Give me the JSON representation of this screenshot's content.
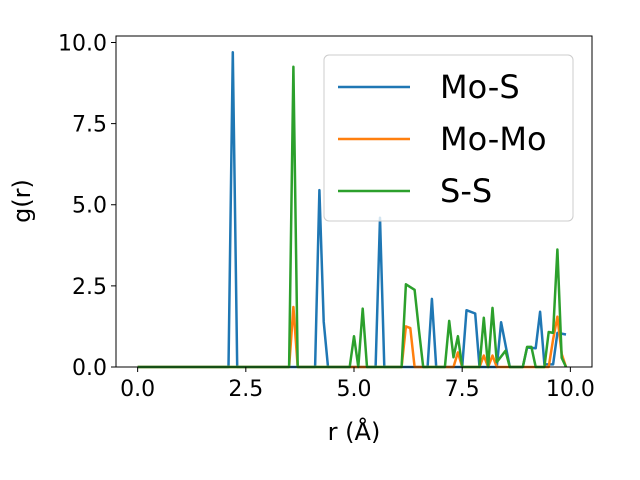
{
  "chart_data": {
    "type": "line",
    "xlabel": "r (Å)",
    "ylabel": "g(r)",
    "xlim": [
      -0.5,
      10.5
    ],
    "ylim": [
      0,
      10.2
    ],
    "xticks": [
      0.0,
      2.5,
      5.0,
      7.5,
      10.0
    ],
    "xtick_labels": [
      "0.0",
      "2.5",
      "5.0",
      "7.5",
      "10.0"
    ],
    "yticks": [
      0.0,
      2.5,
      5.0,
      7.5,
      10.0
    ],
    "ytick_labels": [
      "0.0",
      "2.5",
      "5.0",
      "7.5",
      "10.0"
    ],
    "grid": false,
    "legend_position": "top-right",
    "series": [
      {
        "name": "Mo-S",
        "color": "#1f77b4",
        "points": [
          [
            0.0,
            0
          ],
          [
            2.1,
            0
          ],
          [
            2.2,
            9.7
          ],
          [
            2.3,
            0
          ],
          [
            4.1,
            0
          ],
          [
            4.2,
            5.45
          ],
          [
            4.3,
            1.4
          ],
          [
            4.4,
            0
          ],
          [
            5.5,
            0
          ],
          [
            5.6,
            4.6
          ],
          [
            5.7,
            0
          ],
          [
            6.7,
            0
          ],
          [
            6.8,
            2.1
          ],
          [
            6.9,
            0
          ],
          [
            7.5,
            0
          ],
          [
            7.6,
            1.75
          ],
          [
            7.8,
            1.65
          ],
          [
            7.9,
            0
          ],
          [
            8.3,
            0
          ],
          [
            8.4,
            1.38
          ],
          [
            8.6,
            0
          ],
          [
            8.9,
            0
          ],
          [
            9.0,
            0.6
          ],
          [
            9.2,
            0.58
          ],
          [
            9.3,
            1.7
          ],
          [
            9.4,
            0.08
          ],
          [
            9.6,
            0.08
          ],
          [
            9.7,
            1.05
          ],
          [
            9.9,
            1.0
          ]
        ]
      },
      {
        "name": "Mo-Mo",
        "color": "#ff7f0e",
        "points": [
          [
            0.0,
            0
          ],
          [
            3.5,
            0
          ],
          [
            3.6,
            1.85
          ],
          [
            3.7,
            0
          ],
          [
            6.1,
            0
          ],
          [
            6.2,
            1.25
          ],
          [
            6.3,
            1.2
          ],
          [
            6.4,
            0
          ],
          [
            7.3,
            0
          ],
          [
            7.4,
            0.45
          ],
          [
            7.5,
            0
          ],
          [
            7.9,
            0
          ],
          [
            8.0,
            0.35
          ],
          [
            8.1,
            0
          ],
          [
            8.2,
            0.35
          ],
          [
            8.3,
            0
          ],
          [
            9.5,
            0
          ],
          [
            9.6,
            0.85
          ],
          [
            9.7,
            1.55
          ],
          [
            9.8,
            0.4
          ],
          [
            9.9,
            0
          ]
        ]
      },
      {
        "name": "S-S",
        "color": "#2ca02c",
        "points": [
          [
            0.0,
            0
          ],
          [
            3.5,
            0
          ],
          [
            3.6,
            9.25
          ],
          [
            3.7,
            0
          ],
          [
            4.9,
            0
          ],
          [
            5.0,
            0.95
          ],
          [
            5.1,
            0
          ],
          [
            5.2,
            1.8
          ],
          [
            5.3,
            0
          ],
          [
            6.1,
            0
          ],
          [
            6.2,
            2.55
          ],
          [
            6.4,
            2.38
          ],
          [
            6.5,
            1.15
          ],
          [
            6.6,
            0
          ],
          [
            7.1,
            0
          ],
          [
            7.2,
            1.42
          ],
          [
            7.3,
            0.3
          ],
          [
            7.4,
            0.95
          ],
          [
            7.5,
            0
          ],
          [
            7.9,
            0
          ],
          [
            8.0,
            1.52
          ],
          [
            8.1,
            0
          ],
          [
            8.2,
            1.82
          ],
          [
            8.3,
            0.15
          ],
          [
            8.5,
            0.5
          ],
          [
            8.6,
            0
          ],
          [
            8.9,
            0
          ],
          [
            9.0,
            0.62
          ],
          [
            9.1,
            0.62
          ],
          [
            9.2,
            0
          ],
          [
            9.4,
            0
          ],
          [
            9.5,
            1.08
          ],
          [
            9.6,
            1.05
          ],
          [
            9.7,
            3.62
          ],
          [
            9.8,
            0.28
          ],
          [
            9.9,
            0
          ]
        ]
      }
    ]
  }
}
